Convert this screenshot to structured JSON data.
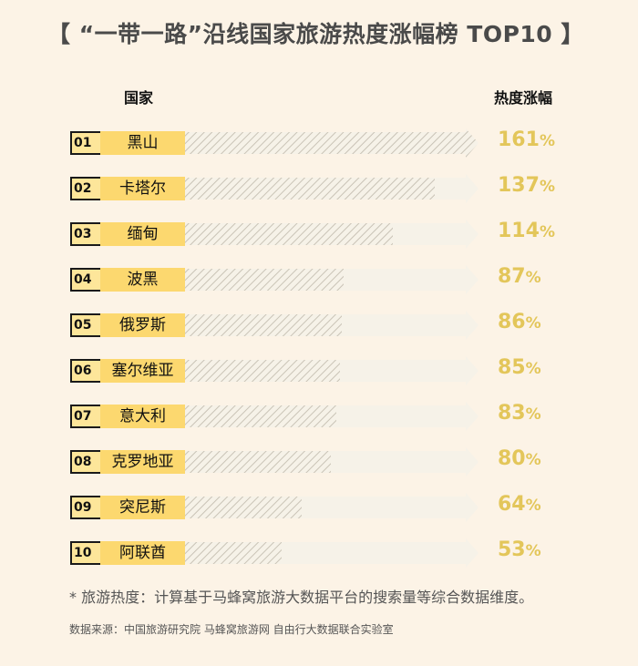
{
  "title": "【 “一带一路”沿线国家旅游热度涨幅榜 TOP10 】",
  "headers": {
    "country": "国家",
    "heat": "热度涨幅"
  },
  "colors": {
    "background": "#fcf3e6",
    "label_fill": "#fcd86f",
    "rank_fill": "#fde69a",
    "arrow_track": "#f6f2e8",
    "hatch": "#c9c3b6",
    "percent": "#e3c65a"
  },
  "chart_data": {
    "type": "bar",
    "title": "【 “一带一路”沿线国家旅游热度涨幅榜 TOP10 】",
    "xlabel": "国家",
    "ylabel": "热度涨幅",
    "ylim": [
      0,
      161
    ],
    "unit": "%",
    "ranks": [
      "01",
      "02",
      "03",
      "04",
      "05",
      "06",
      "07",
      "08",
      "09",
      "10"
    ],
    "categories": [
      "黑山",
      "卡塔尔",
      "缅甸",
      "波黑",
      "俄罗斯",
      "塞尔维亚",
      "意大利",
      "克罗地亚",
      "突尼斯",
      "阿联酋"
    ],
    "values": [
      161,
      137,
      114,
      87,
      86,
      85,
      83,
      80,
      64,
      53
    ]
  },
  "footnote": "* 旅游热度：计算基于马蜂窝旅游大数据平台的搜索量等综合数据维度。",
  "source": "数据来源：中国旅游研究院  马蜂窝旅游网 自由行大数据联合实验室"
}
